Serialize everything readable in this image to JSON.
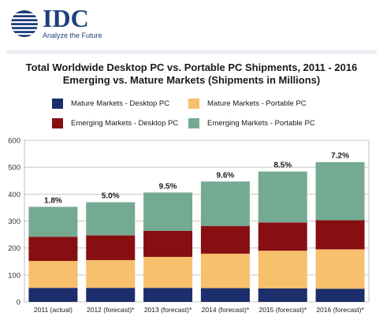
{
  "header": {
    "logo_text": "IDC",
    "tagline": "Analyze the Future"
  },
  "chart_data": {
    "type": "bar",
    "stacked": true,
    "title": "Total Worldwide Desktop PC vs. Portable PC Shipments, 2011 - 2016",
    "subtitle": "Emerging vs. Mature Markets (Shipments in Millions)",
    "categories": [
      "2011 (actual)",
      "2012 (forecast)*",
      "2013 (forecast)*",
      "2014 (forecast)*",
      "2015 (forecast)*",
      "2016 (forecast)*"
    ],
    "series": [
      {
        "name": "Mature Markets - Desktop PC",
        "color": "#1c2e6b",
        "values": [
          52,
          52,
          52,
          51,
          50,
          49
        ]
      },
      {
        "name": "Mature Markets - Portable PC",
        "color": "#f8bf6c",
        "values": [
          100,
          103,
          115,
          128,
          140,
          146
        ]
      },
      {
        "name": "Emerging Markets - Desktop PC",
        "color": "#870f12",
        "values": [
          90,
          92,
          97,
          103,
          105,
          108
        ]
      },
      {
        "name": "Emerging Markets - Portable PC",
        "color": "#74aa92",
        "values": [
          111,
          123,
          142,
          165,
          189,
          216
        ]
      }
    ],
    "bar_labels": [
      "1.8%",
      "5.0%",
      "9.5%",
      "9.6%",
      "8.5%",
      "7.2%"
    ],
    "ylim": [
      0,
      600
    ],
    "yticks": [
      0,
      100,
      200,
      300,
      400,
      500,
      600
    ],
    "xlabel": "",
    "ylabel": "",
    "grid": true,
    "legend_position": "top"
  }
}
